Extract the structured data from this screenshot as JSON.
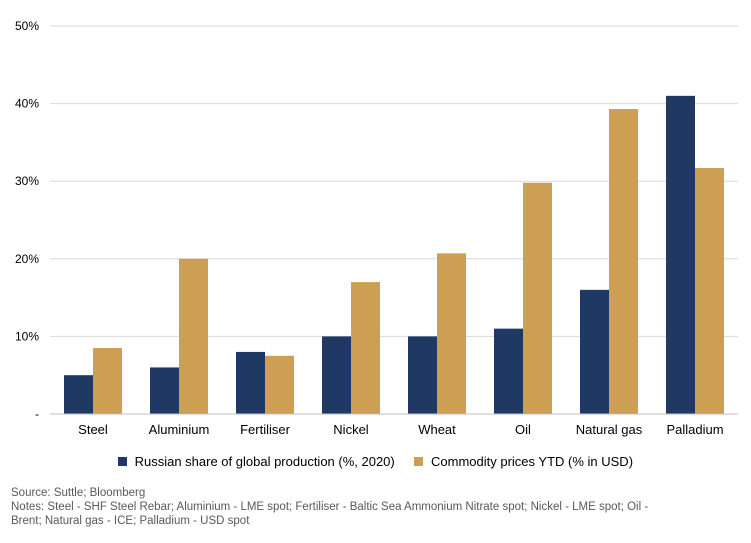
{
  "chart_data": {
    "type": "bar",
    "categories": [
      "Steel",
      "Aluminium",
      "Fertiliser",
      "Nickel",
      "Wheat",
      "Oil",
      "Natural gas",
      "Palladium"
    ],
    "series": [
      {
        "name": "Russian share of global production (%, 2020)",
        "color": "#1f3864",
        "values": [
          5,
          6,
          8,
          10,
          10,
          11,
          16,
          41
        ]
      },
      {
        "name": "Commodity prices YTD (% in USD)",
        "color": "#cc9f52",
        "values": [
          8.5,
          20,
          7.5,
          17,
          20.7,
          29.8,
          39.3,
          31.7
        ]
      }
    ],
    "y_ticks": [
      "-",
      "10%",
      "20%",
      "30%",
      "40%",
      "50%"
    ],
    "ylim": [
      0,
      50
    ],
    "grid": true,
    "legend_position": "bottom"
  },
  "footer": {
    "source": "Source: Suttle; Bloomberg",
    "notes_line1": "Notes: Steel -  SHF Steel Rebar; Aluminium - LME spot; Fertiliser - Baltic Sea Ammonium Nitrate spot; Nickel -  LME spot;  Oil -",
    "notes_line2": "Brent; Natural gas - ICE; Palladium - USD spot"
  }
}
